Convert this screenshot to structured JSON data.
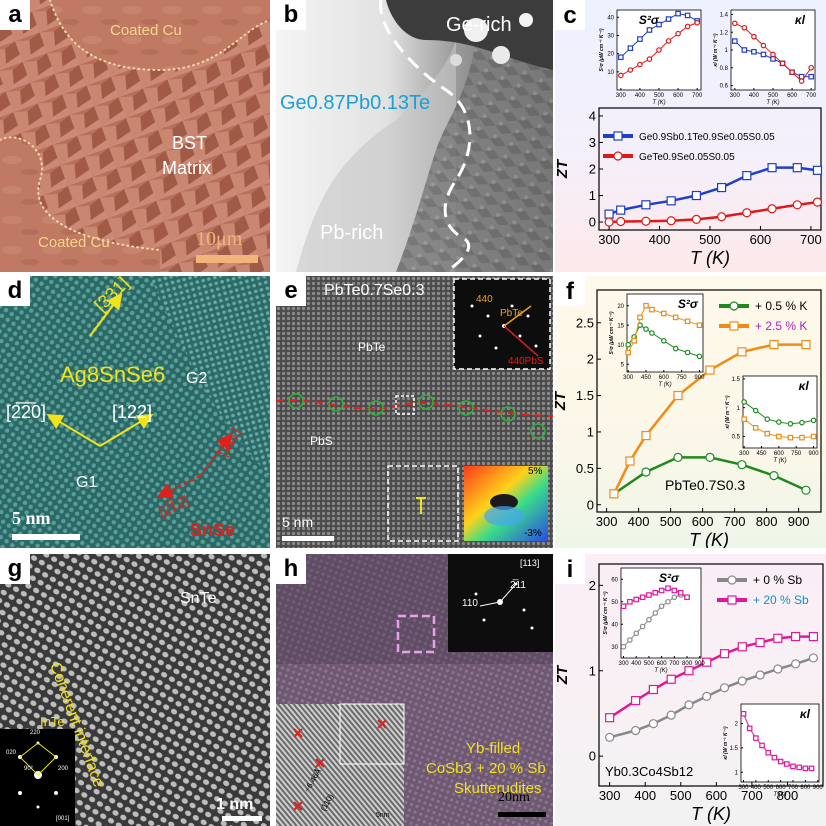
{
  "panels": {
    "a": {
      "label": "a",
      "coated_top": "Coated Cu",
      "coated_bottom": "Coated Cu",
      "matrix_line1": "BST",
      "matrix_line2": "Matrix",
      "scale": "10μm"
    },
    "b": {
      "label": "b",
      "ge_rich": "Ge-rich",
      "pb_rich": "Pb-rich",
      "composition": "Ge0.87Pb0.13Te"
    },
    "d": {
      "label": "d",
      "dir331": "[331]",
      "compound": "Ag8SnSe6",
      "g2": "G2",
      "g1": "G1",
      "dir220": "[2̅2̅0]",
      "dir122": "[122]",
      "dir_a": "[2̅11]",
      "dir_b": "[2̅12]",
      "scale": "5 nm",
      "snse": "SnSe"
    },
    "e": {
      "label": "e",
      "title": "PbTe0.7Se0.3",
      "pbte": "PbTe",
      "pbs": "PbS",
      "scale": "5 nm",
      "inset_440": "440",
      "inset_pbte": "PbTe",
      "inset_pbs": "440PbS",
      "strain_max": "5%",
      "strain_min": "-3%"
    },
    "g": {
      "label": "g",
      "snte": "SnTe",
      "interface": "Coherent interface",
      "inte": "InTe",
      "scale": "1 nm",
      "saed_220": "220",
      "saed_020": "020",
      "saed_200": "200",
      "saed_90": "90°",
      "saed_zone": "[001]"
    },
    "h": {
      "label": "h",
      "zone": "[113]",
      "spot1": "2̅11",
      "spot2": "110",
      "text_line1": "Yb-filled",
      "text_line2": "CoSb3 + 20 % Sb",
      "text_line3": "Skutterudites",
      "scale": "20nm",
      "inset_spacing": "~6.46Å",
      "inset_dir": "(110)",
      "inset_scale": "5nm"
    }
  },
  "chart_data": [
    {
      "panel": "c",
      "type": "line",
      "xlabel": "T (K)",
      "ylabel": "ZT",
      "xlim": [
        280,
        720
      ],
      "ylim": [
        -0.3,
        4.3
      ],
      "xticks": [
        300,
        400,
        500,
        600,
        700
      ],
      "yticks": [
        0,
        1,
        2,
        3,
        4
      ],
      "legend": [
        {
          "name": "Ge0.9Sb0.1Te0.9Se0.05S0.05",
          "color": "#1f3fc8",
          "marker": "square"
        },
        {
          "name": "GeTe0.9Se0.05S0.05",
          "color": "#e01818",
          "marker": "circle"
        }
      ],
      "series": [
        {
          "name": "Ge0.9Sb0.1Te0.9Se0.05S0.05",
          "color": "#1f3fc8",
          "marker": "square",
          "x": [
            300,
            323,
            373,
            423,
            473,
            523,
            573,
            623,
            673,
            713
          ],
          "y": [
            0.3,
            0.45,
            0.65,
            0.8,
            1.0,
            1.3,
            1.75,
            2.05,
            2.05,
            1.95
          ]
        },
        {
          "name": "GeTe0.9Se0.05S0.05",
          "color": "#e01818",
          "marker": "circle",
          "x": [
            300,
            323,
            373,
            423,
            473,
            523,
            573,
            623,
            673,
            713
          ],
          "y": [
            0.0,
            0.02,
            0.03,
            0.05,
            0.1,
            0.2,
            0.35,
            0.5,
            0.65,
            0.75
          ]
        }
      ],
      "insets": [
        {
          "title": "S²σ",
          "ylabel": "S²σ (μW cm⁻¹ K⁻²)",
          "xlabel": "T (K)",
          "xlim": [
            280,
            720
          ],
          "ylim": [
            0,
            44
          ],
          "xticks": [
            300,
            400,
            500,
            600,
            700
          ],
          "yticks": [
            10,
            20,
            30,
            40
          ],
          "series": [
            {
              "color": "#1f3fc8",
              "marker": "square",
              "x": [
                300,
                350,
                400,
                450,
                500,
                550,
                600,
                650,
                700
              ],
              "y": [
                18,
                23,
                28,
                33,
                36,
                39,
                42,
                41,
                38
              ]
            },
            {
              "color": "#e01818",
              "marker": "circle",
              "x": [
                300,
                350,
                400,
                450,
                500,
                550,
                600,
                650,
                700
              ],
              "y": [
                8,
                11,
                14,
                17,
                22,
                27,
                31,
                35,
                37
              ]
            }
          ]
        },
        {
          "title": "κl",
          "ylabel": "κl (W m⁻¹ K⁻¹)",
          "xlabel": "T (K)",
          "xlim": [
            280,
            720
          ],
          "ylim": [
            0.55,
            1.45
          ],
          "xticks": [
            300,
            400,
            500,
            600,
            700
          ],
          "yticks": [
            0.6,
            0.8,
            1.0,
            1.2,
            1.4
          ],
          "series": [
            {
              "color": "#1f3fc8",
              "marker": "square",
              "x": [
                300,
                350,
                400,
                450,
                500,
                550,
                600,
                650,
                700
              ],
              "y": [
                1.1,
                1.0,
                0.98,
                0.95,
                0.9,
                0.85,
                0.75,
                0.7,
                0.7
              ]
            },
            {
              "color": "#e01818",
              "marker": "circle",
              "x": [
                300,
                350,
                400,
                450,
                500,
                550,
                600,
                650,
                700
              ],
              "y": [
                1.3,
                1.25,
                1.15,
                1.05,
                0.95,
                0.85,
                0.75,
                0.65,
                0.8
              ]
            }
          ]
        }
      ]
    },
    {
      "panel": "f",
      "type": "line",
      "xlabel": "T (K)",
      "ylabel": "ZT",
      "xlim": [
        270,
        970
      ],
      "ylim": [
        -0.1,
        2.95
      ],
      "xticks": [
        300,
        400,
        500,
        600,
        700,
        800,
        900
      ],
      "yticks": [
        0,
        0.5,
        1.0,
        1.5,
        2.0,
        2.5
      ],
      "annotation": "PbTe0.7S0.3",
      "legend": [
        {
          "name": "+ 0.5 % K",
          "color": "#1e8a1e",
          "marker": "circle"
        },
        {
          "name": "+ 2.5 % K",
          "color": "#f08c14",
          "marker": "square"
        }
      ],
      "series": [
        {
          "name": "+ 0.5 % K",
          "color": "#1e8a1e",
          "marker": "circle",
          "x": [
            323,
            423,
            523,
            623,
            723,
            823,
            923
          ],
          "y": [
            0.15,
            0.45,
            0.65,
            0.65,
            0.55,
            0.4,
            0.2
          ]
        },
        {
          "name": "+ 2.5 % K",
          "color": "#f08c14",
          "marker": "square",
          "x": [
            323,
            373,
            423,
            523,
            623,
            723,
            823,
            923
          ],
          "y": [
            0.15,
            0.6,
            0.95,
            1.5,
            1.85,
            2.1,
            2.2,
            2.2
          ]
        }
      ],
      "insets": [
        {
          "title": "S²σ",
          "ylabel": "S²σ (μW cm⁻¹ K⁻²)",
          "xlabel": "T (K)",
          "xlim": [
            290,
            930
          ],
          "ylim": [
            3,
            23
          ],
          "xticks": [
            300,
            450,
            600,
            750,
            900
          ],
          "yticks": [
            5,
            10,
            15,
            20
          ],
          "series": [
            {
              "color": "#1e8a1e",
              "marker": "circle",
              "x": [
                300,
                350,
                400,
                450,
                500,
                600,
                700,
                800,
                900
              ],
              "y": [
                10,
                12,
                15,
                14,
                13,
                11,
                9,
                8,
                7
              ]
            },
            {
              "color": "#f08c14",
              "marker": "square",
              "x": [
                300,
                350,
                400,
                450,
                500,
                600,
                700,
                800,
                900
              ],
              "y": [
                8,
                11,
                17,
                20,
                19,
                18,
                17,
                16,
                15
              ]
            }
          ]
        },
        {
          "title": "κl",
          "ylabel": "κl (W m⁻¹ K⁻¹)",
          "xlabel": "T (K)",
          "xlim": [
            290,
            930
          ],
          "ylim": [
            0.3,
            1.55
          ],
          "xticks": [
            300,
            450,
            600,
            750,
            900
          ],
          "yticks": [
            0.5,
            1.0,
            1.5
          ],
          "series": [
            {
              "color": "#1e8a1e",
              "marker": "circle",
              "x": [
                300,
                400,
                500,
                600,
                700,
                800,
                900
              ],
              "y": [
                1.1,
                0.95,
                0.8,
                0.75,
                0.72,
                0.74,
                0.78
              ]
            },
            {
              "color": "#f08c14",
              "marker": "square",
              "x": [
                300,
                400,
                500,
                600,
                700,
                800,
                900
              ],
              "y": [
                0.8,
                0.65,
                0.55,
                0.5,
                0.48,
                0.48,
                0.5
              ]
            }
          ]
        }
      ]
    },
    {
      "panel": "i",
      "type": "line",
      "xlabel": "T (K)",
      "ylabel": "ZT",
      "xlim": [
        270,
        900
      ],
      "ylim": [
        -0.35,
        2.25
      ],
      "xticks": [
        300,
        400,
        500,
        600,
        700,
        800
      ],
      "yticks": [
        0,
        1,
        2
      ],
      "annotation": "Yb0.3Co4Sb12",
      "legend": [
        {
          "name": "+ 0 % Sb",
          "color": "#888888",
          "marker": "circle"
        },
        {
          "name": "+ 20 % Sb",
          "color": "#e0189a",
          "marker": "square"
        }
      ],
      "series": [
        {
          "name": "+ 0 % Sb",
          "color": "#888888",
          "marker": "circle",
          "x": [
            300,
            373,
            423,
            473,
            523,
            573,
            623,
            673,
            723,
            773,
            823,
            873
          ],
          "y": [
            0.22,
            0.3,
            0.38,
            0.48,
            0.6,
            0.7,
            0.8,
            0.88,
            0.95,
            1.02,
            1.08,
            1.15
          ]
        },
        {
          "name": "+ 20 % Sb",
          "color": "#e0189a",
          "marker": "square",
          "x": [
            300,
            373,
            423,
            473,
            523,
            573,
            623,
            673,
            723,
            773,
            823,
            873
          ],
          "y": [
            0.45,
            0.65,
            0.78,
            0.9,
            1.0,
            1.1,
            1.2,
            1.28,
            1.33,
            1.38,
            1.4,
            1.4
          ]
        }
      ],
      "insets": [
        {
          "title": "S²σ",
          "ylabel": "S²σ (μW cm⁻¹ K⁻²)",
          "xlabel": "T (K)",
          "xlim": [
            280,
            910
          ],
          "ylim": [
            25,
            65
          ],
          "xticks": [
            300,
            400,
            500,
            600,
            700,
            800,
            900
          ],
          "yticks": [
            30,
            40,
            50,
            60
          ],
          "series": [
            {
              "color": "#888888",
              "marker": "circle",
              "x": [
                300,
                350,
                400,
                450,
                500,
                550,
                600,
                650,
                700,
                750,
                800
              ],
              "y": [
                30,
                33,
                36,
                39,
                42,
                45,
                48,
                50,
                52,
                53,
                52
              ]
            },
            {
              "color": "#e0189a",
              "marker": "square",
              "x": [
                300,
                350,
                400,
                450,
                500,
                550,
                600,
                650,
                700,
                750,
                800
              ],
              "y": [
                48,
                50,
                51,
                52,
                53,
                54,
                55,
                56,
                55,
                54,
                52
              ]
            }
          ]
        },
        {
          "title": "κl",
          "ylabel": "κl (W m⁻¹ K⁻¹)",
          "xlabel": "T (K)",
          "xlim": [
            280,
            910
          ],
          "ylim": [
            0.8,
            2.4
          ],
          "xticks": [
            300,
            400,
            500,
            600,
            700,
            800,
            900
          ],
          "yticks": [
            1.0,
            1.5,
            2.0
          ],
          "series": [
            {
              "color": "#e0189a",
              "marker": "square",
              "x": [
                300,
                350,
                400,
                450,
                500,
                550,
                600,
                650,
                700,
                750,
                800,
                850
              ],
              "y": [
                2.2,
                1.9,
                1.7,
                1.55,
                1.4,
                1.3,
                1.22,
                1.17,
                1.12,
                1.1,
                1.08,
                1.08
              ]
            }
          ]
        }
      ]
    }
  ]
}
